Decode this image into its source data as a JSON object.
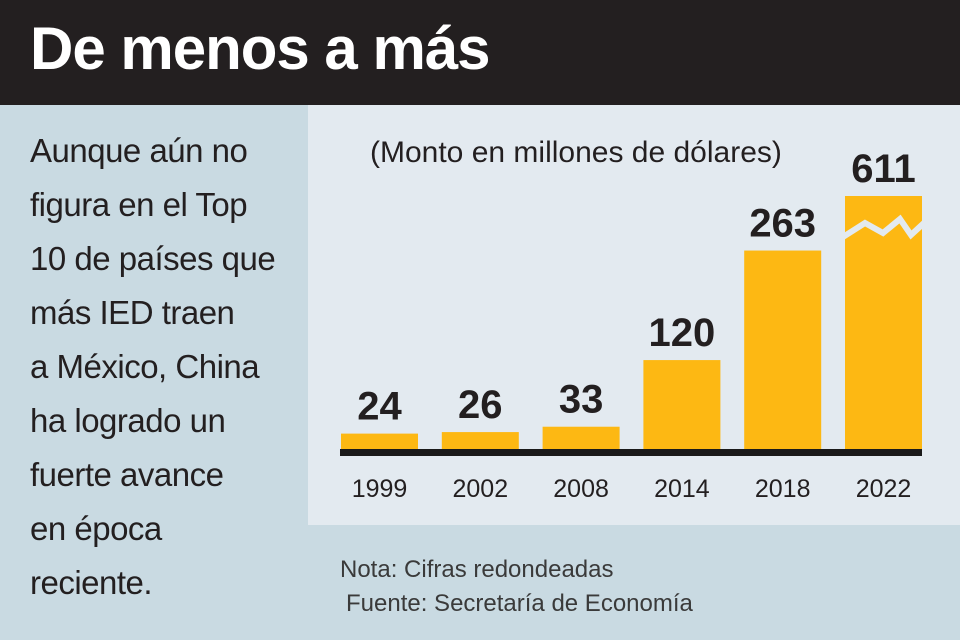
{
  "title": "De menos a más",
  "description": "Aunque aún no figura en el Top 10 de países que más IED traen a México, China ha logrado un fuerte avance en época reciente.",
  "description_lines": [
    "Aunque aún no",
    "figura en el Top",
    "10 de países que",
    "más IED traen",
    "a México, China",
    "ha logrado un",
    "fuerte avance",
    "en época",
    "reciente."
  ],
  "note": "Nota: Cifras redondeadas",
  "source": "Fuente: Secretaría de Economía",
  "colors": {
    "bar": "#fdb813",
    "title_bg": "#231f20",
    "panel_bg": "#e3eaf0",
    "page_bg": "#c9dae2"
  },
  "chart_data": {
    "type": "bar",
    "title": "",
    "subtitle": "(Monto en millones de dólares)",
    "categories": [
      "1999",
      "2002",
      "2008",
      "2014",
      "2018",
      "2022"
    ],
    "values": [
      24,
      26,
      33,
      120,
      263,
      611
    ],
    "data_labels": [
      "24",
      "26",
      "33",
      "120",
      "263",
      "611"
    ],
    "broken_bar": "2022",
    "grid": false,
    "ylim": [
      0,
      611
    ]
  }
}
